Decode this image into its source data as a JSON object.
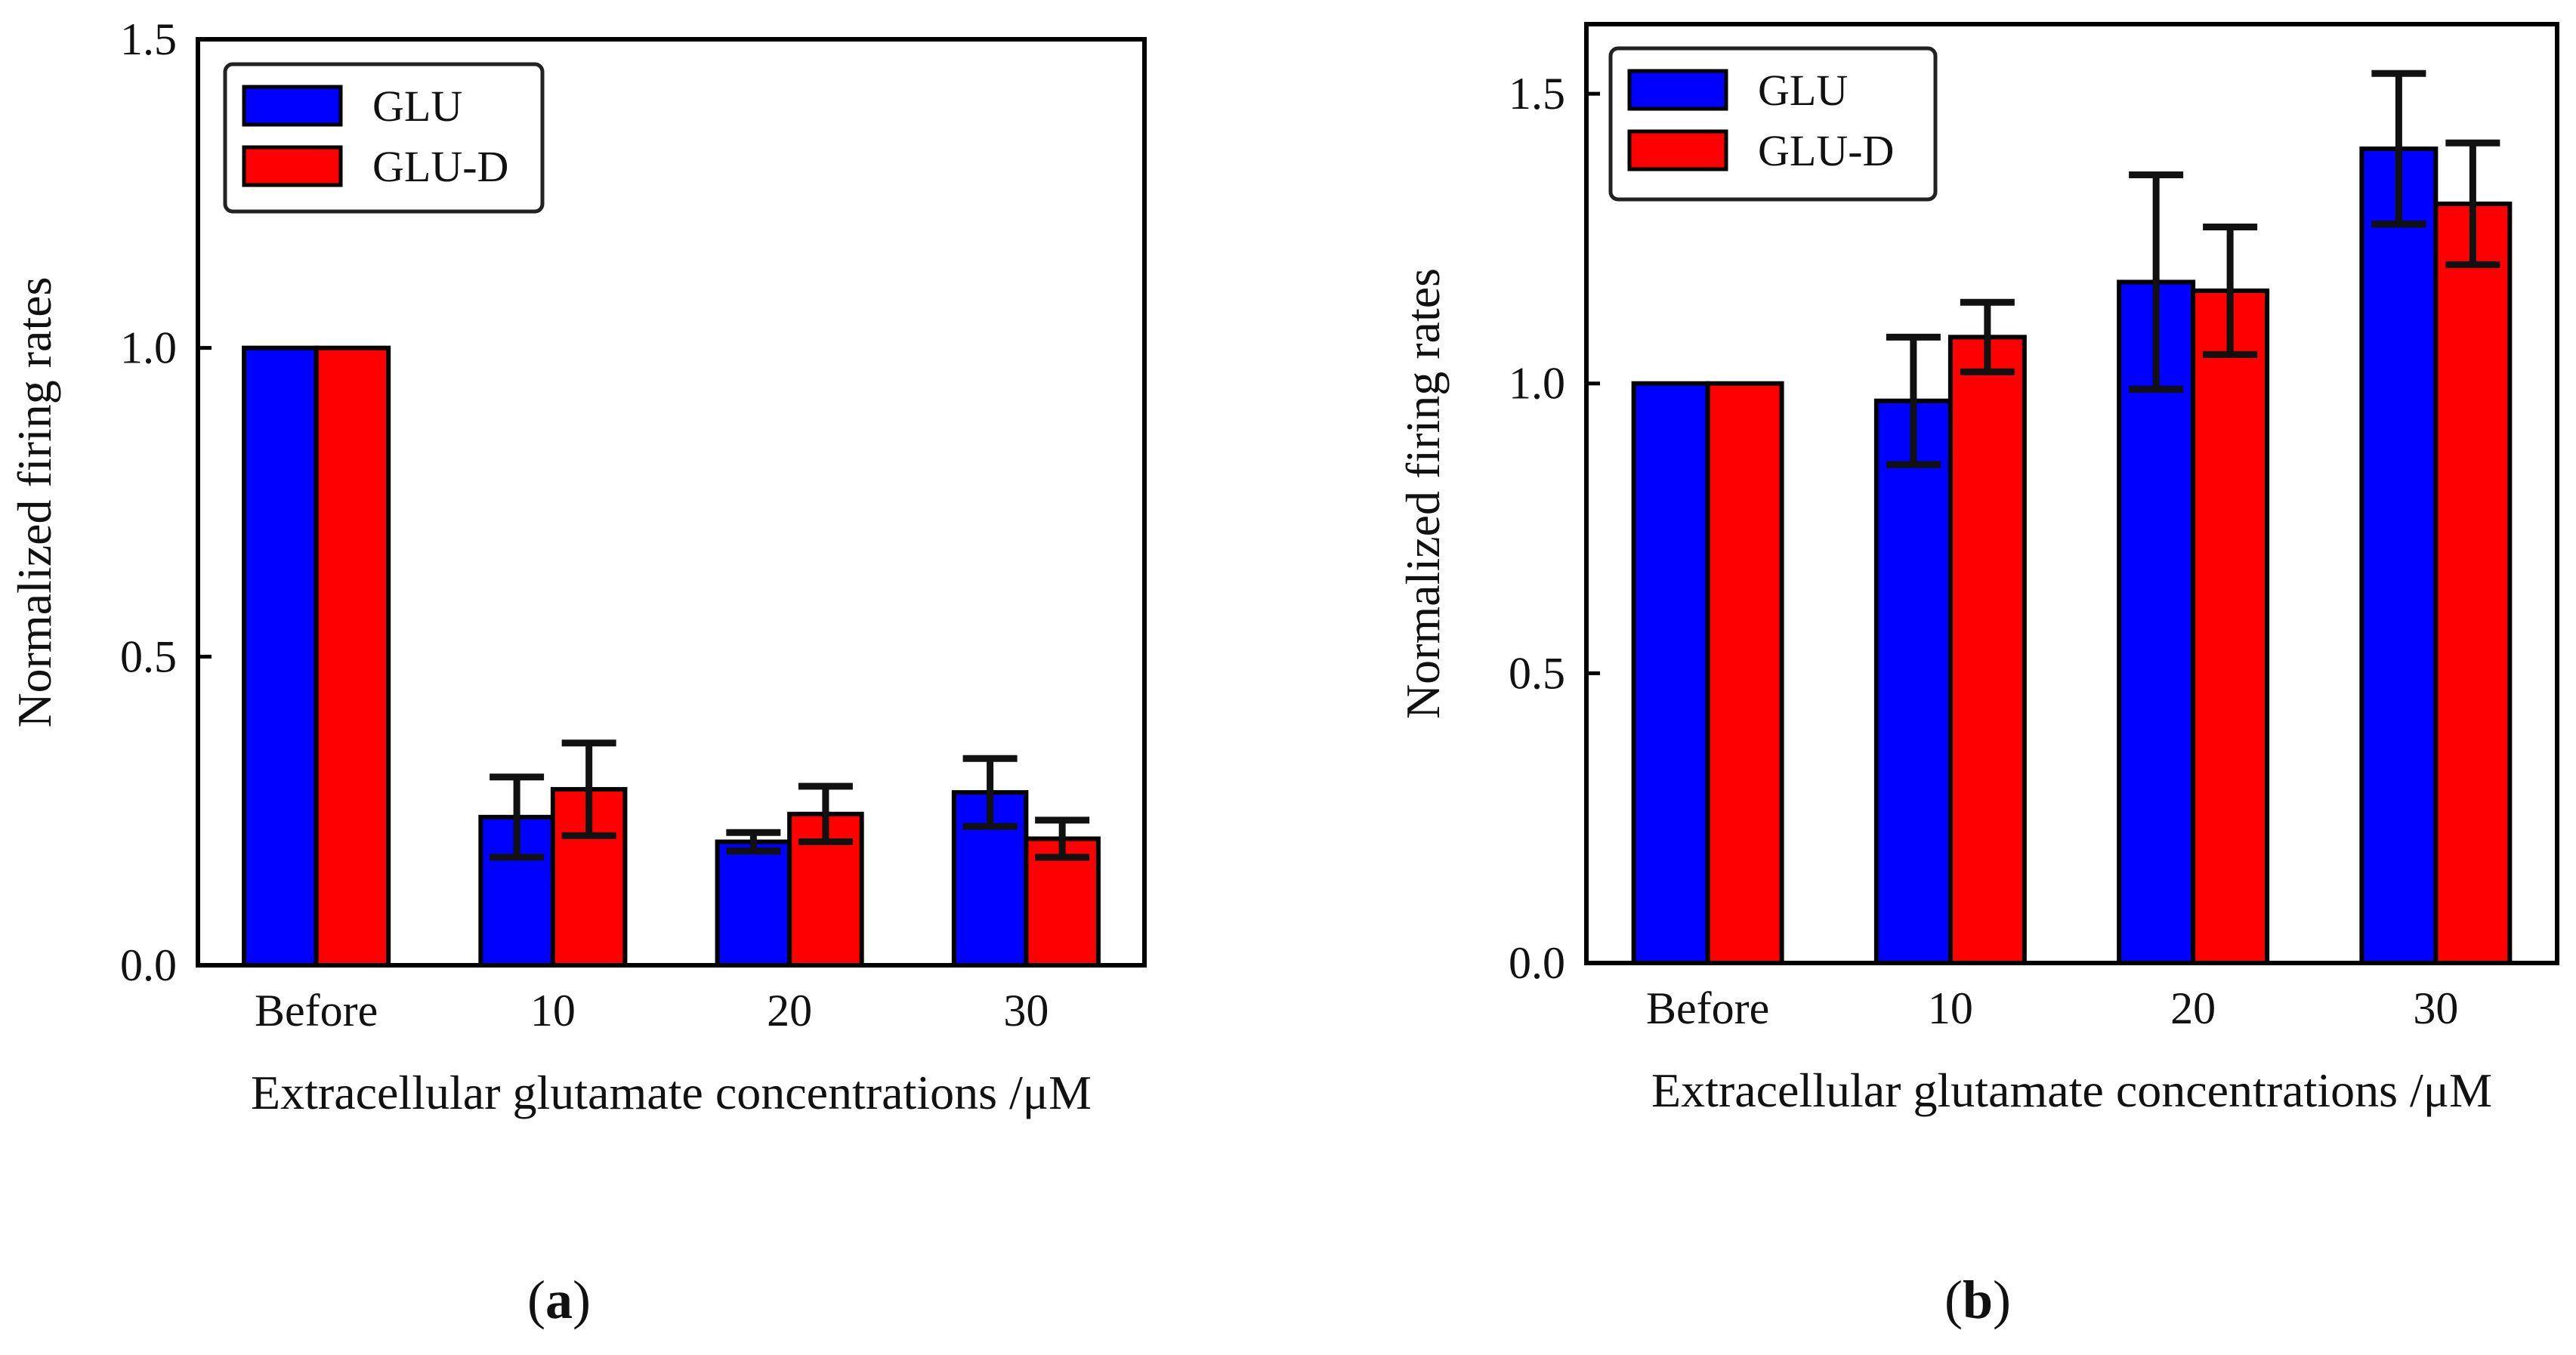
{
  "chart_data": [
    {
      "type": "bar",
      "panel": "a",
      "categories": [
        "Before",
        "10",
        "20",
        "30"
      ],
      "series": [
        {
          "name": "GLU",
          "color": "#0000ff",
          "values": [
            1.0,
            0.24,
            0.2,
            0.28
          ],
          "errors": [
            0.0,
            0.065,
            0.015,
            0.055
          ]
        },
        {
          "name": "GLU-D",
          "color": "#ff0000",
          "values": [
            1.0,
            0.285,
            0.245,
            0.205
          ],
          "errors": [
            0.0,
            0.075,
            0.045,
            0.03
          ]
        }
      ],
      "yticks": [
        "0.0",
        "0.5",
        "1.0",
        "1.5"
      ],
      "ytick_values": [
        0.0,
        0.5,
        1.0,
        1.5
      ],
      "ylim": [
        0.0,
        1.5
      ],
      "xlabel": "Extracellular glutamate concentrations /μM",
      "ylabel": "Normalized firing rates",
      "legend_position": "top-left"
    },
    {
      "type": "bar",
      "panel": "b",
      "categories": [
        "Before",
        "10",
        "20",
        "30"
      ],
      "series": [
        {
          "name": "GLU",
          "color": "#0000ff",
          "values": [
            1.0,
            0.97,
            1.175,
            1.405
          ],
          "errors": [
            0.0,
            0.11,
            0.185,
            0.13
          ]
        },
        {
          "name": "GLU-D",
          "color": "#ff0000",
          "values": [
            1.0,
            1.08,
            1.16,
            1.31
          ],
          "errors": [
            0.0,
            0.06,
            0.11,
            0.105
          ]
        }
      ],
      "yticks": [
        "0.0",
        "0.5",
        "1.0",
        "1.5"
      ],
      "ytick_values": [
        0.0,
        0.5,
        1.0,
        1.5
      ],
      "ylim": [
        0.0,
        1.62
      ],
      "xlabel": "Extracellular glutamate concentrations /μM",
      "ylabel": "Normalized firing rates",
      "legend_position": "top-left"
    }
  ],
  "panel_labels": {
    "a": {
      "open": "(",
      "letter": "a",
      "close": ")"
    },
    "b": {
      "open": "(",
      "letter": "b",
      "close": ")"
    }
  }
}
